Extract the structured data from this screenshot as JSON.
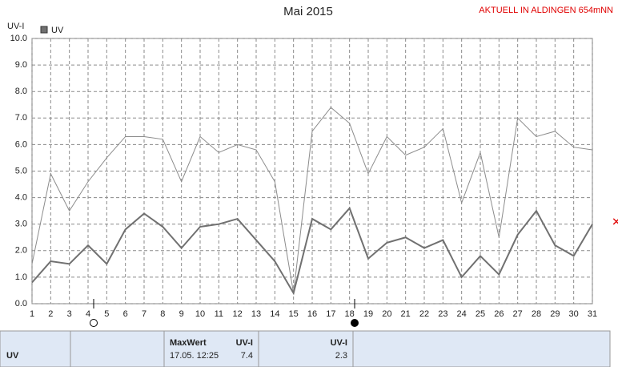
{
  "chart_data": {
    "type": "line",
    "title": "Mai 2015",
    "annotation": "AKTUELL IN ALDINGEN 654mNN",
    "y_label": "UV-I",
    "x": [
      1,
      2,
      3,
      4,
      5,
      6,
      7,
      8,
      9,
      10,
      11,
      12,
      13,
      14,
      15,
      16,
      17,
      18,
      19,
      20,
      21,
      22,
      23,
      24,
      25,
      26,
      27,
      28,
      29,
      30,
      31
    ],
    "xlim": [
      1,
      31
    ],
    "xticks": [
      1,
      2,
      3,
      4,
      5,
      6,
      7,
      8,
      9,
      10,
      11,
      12,
      13,
      14,
      15,
      16,
      17,
      18,
      19,
      20,
      21,
      22,
      23,
      24,
      25,
      26,
      27,
      28,
      29,
      30,
      31
    ],
    "ylim": [
      0,
      10
    ],
    "yticks": [
      {
        "value": 0,
        "label": "0.0"
      },
      {
        "value": 1,
        "label": "1.0"
      },
      {
        "value": 2,
        "label": "2.0"
      },
      {
        "value": 3,
        "label": "3.0"
      },
      {
        "value": 4,
        "label": "4.0"
      },
      {
        "value": 5,
        "label": "5.0"
      },
      {
        "value": 6,
        "label": "6.0"
      },
      {
        "value": 7,
        "label": "7.0"
      },
      {
        "value": 8,
        "label": "8.0"
      },
      {
        "value": 9,
        "label": "9.0"
      },
      {
        "value": 10,
        "label": "10.0"
      }
    ],
    "grid": true,
    "series": [
      {
        "name": "UV",
        "color": "#707070",
        "values": [
          0.8,
          1.6,
          1.5,
          2.2,
          1.5,
          2.8,
          3.4,
          2.9,
          2.1,
          2.9,
          3.0,
          3.2,
          2.4,
          1.6,
          0.4,
          3.2,
          2.8,
          3.6,
          1.7,
          2.3,
          2.5,
          2.1,
          2.4,
          1.0,
          1.8,
          1.1,
          2.6,
          3.5,
          2.2,
          1.8,
          3.0
        ]
      },
      {
        "color": "#8c8c8c",
        "values": [
          1.5,
          4.9,
          3.5,
          4.6,
          5.5,
          6.3,
          6.3,
          6.2,
          4.6,
          6.3,
          5.7,
          6.0,
          5.8,
          4.6,
          0.4,
          6.5,
          7.4,
          6.8,
          4.9,
          6.3,
          5.6,
          5.9,
          6.6,
          3.8,
          5.7,
          2.5,
          7.0,
          6.3,
          6.5,
          5.9,
          5.8
        ]
      }
    ]
  },
  "table": {
    "row_label": "UV",
    "max_header": "MaxWert",
    "max_unit": "UV-I",
    "max_time": "17.05.  12:25",
    "max_value": "7.4",
    "second_unit": "UV-I",
    "second_value": "2.3"
  }
}
